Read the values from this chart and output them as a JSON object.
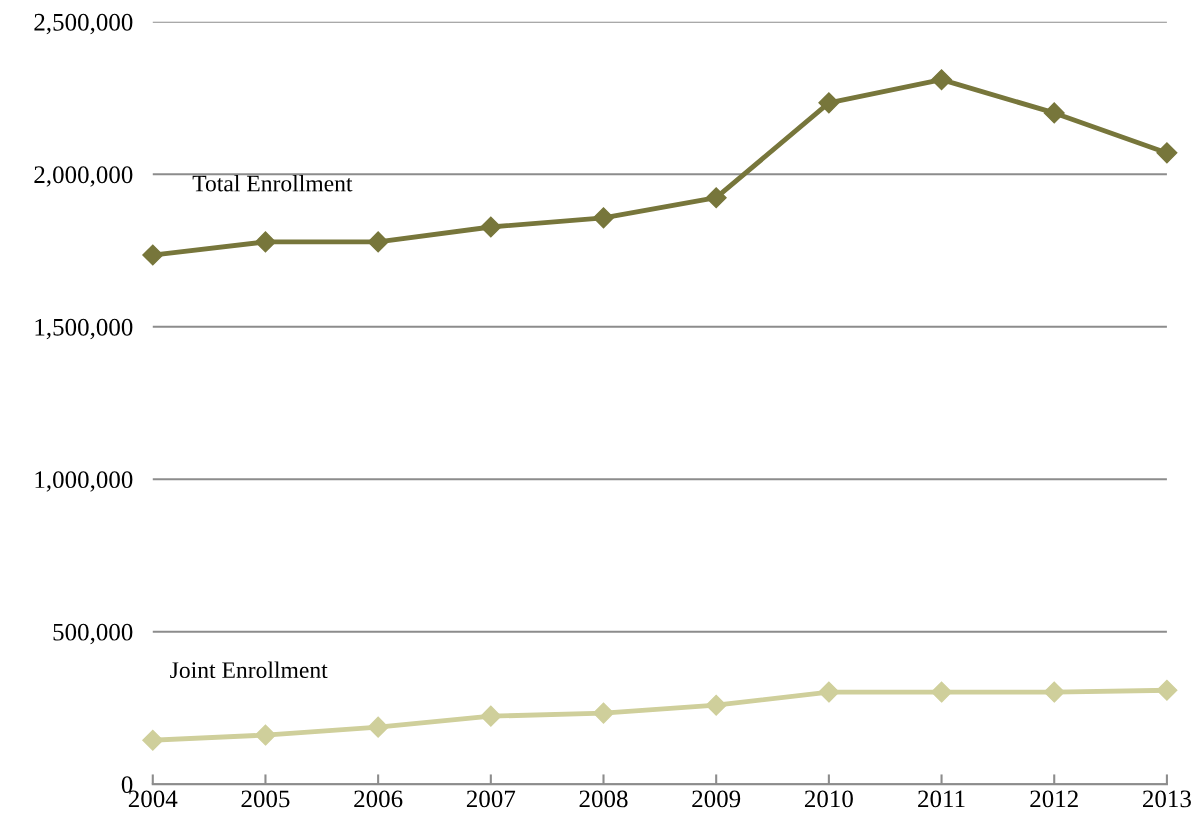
{
  "chart_data": {
    "type": "line",
    "x": [
      2004,
      2005,
      2006,
      2007,
      2008,
      2009,
      2010,
      2011,
      2012,
      2013
    ],
    "series": [
      {
        "name": "Total Enrollment",
        "color": "#77763b",
        "values": [
          1735000,
          1778000,
          1778000,
          1827000,
          1857000,
          1923000,
          2234000,
          2310000,
          2201000,
          2070000
        ]
      },
      {
        "name": "Joint Enrollment",
        "color": "#cfcf9b",
        "values": [
          144000,
          161000,
          187000,
          223000,
          233000,
          259000,
          302000,
          302000,
          302000,
          308000
        ]
      }
    ],
    "xlim": [
      2004,
      2013
    ],
    "xticks": [
      2004,
      2005,
      2006,
      2007,
      2008,
      2009,
      2010,
      2011,
      2012,
      2013
    ],
    "ylim": [
      0,
      2500000
    ],
    "yticks": [
      {
        "value": 0,
        "label": "0"
      },
      {
        "value": 500000,
        "label": "500,000"
      },
      {
        "value": 1000000,
        "label": "1,000,000"
      },
      {
        "value": 1500000,
        "label": "1,500,000"
      },
      {
        "value": 2000000,
        "label": "2,000,000"
      },
      {
        "value": 2500000,
        "label": "2,500,000"
      }
    ],
    "grid": "y",
    "marker": "diamond",
    "line_style": "solid",
    "legend": false
  }
}
